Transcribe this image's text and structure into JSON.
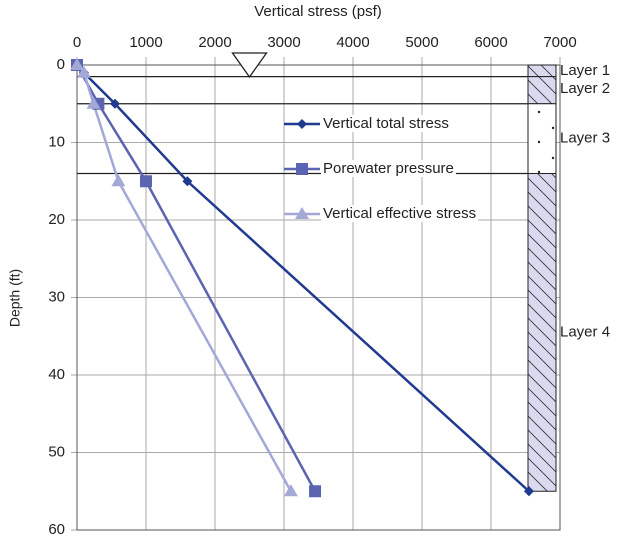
{
  "chart_data": {
    "type": "line",
    "x_label": "Vertical stress (psf)",
    "y_label": "Depth (ft)",
    "xlim": [
      0,
      7000
    ],
    "xticks": [
      0,
      1000,
      2000,
      3000,
      4000,
      5000,
      6000,
      7000
    ],
    "ylim": [
      0,
      60
    ],
    "yticks": [
      0,
      10,
      20,
      30,
      40,
      50,
      60
    ],
    "grid": true,
    "y_inverted": true,
    "x_axis_position": "top",
    "legend": "upper right",
    "water_table_x": 2500,
    "series": [
      {
        "name": "Vertical total stress",
        "color": "#1f3a8f",
        "marker": "diamond",
        "x": [
          0,
          100,
          550,
          1600,
          6550
        ],
        "values": [
          0,
          1,
          5,
          15,
          55
        ]
      },
      {
        "name": "Porewater pressure",
        "color": "#5a64b0",
        "marker": "square",
        "x": [
          0,
          310,
          1000,
          3450
        ],
        "values": [
          0,
          5,
          15,
          55
        ]
      },
      {
        "name": "Vertical effective stress",
        "color": "#a3a8d6",
        "marker": "triangle",
        "x": [
          0,
          100,
          240,
          600,
          3100
        ],
        "values": [
          0,
          1,
          5,
          15,
          55
        ]
      }
    ],
    "layers": [
      {
        "label": "Layer 1",
        "top": 0,
        "bottom": 1.5,
        "hatched": true
      },
      {
        "label": "Layer 2",
        "top": 1.5,
        "bottom": 5,
        "hatched": true
      },
      {
        "label": "Layer 3",
        "top": 5,
        "bottom": 14,
        "hatched": false
      },
      {
        "label": "Layer 4",
        "top": 14,
        "bottom": 55,
        "hatched": true
      }
    ]
  }
}
